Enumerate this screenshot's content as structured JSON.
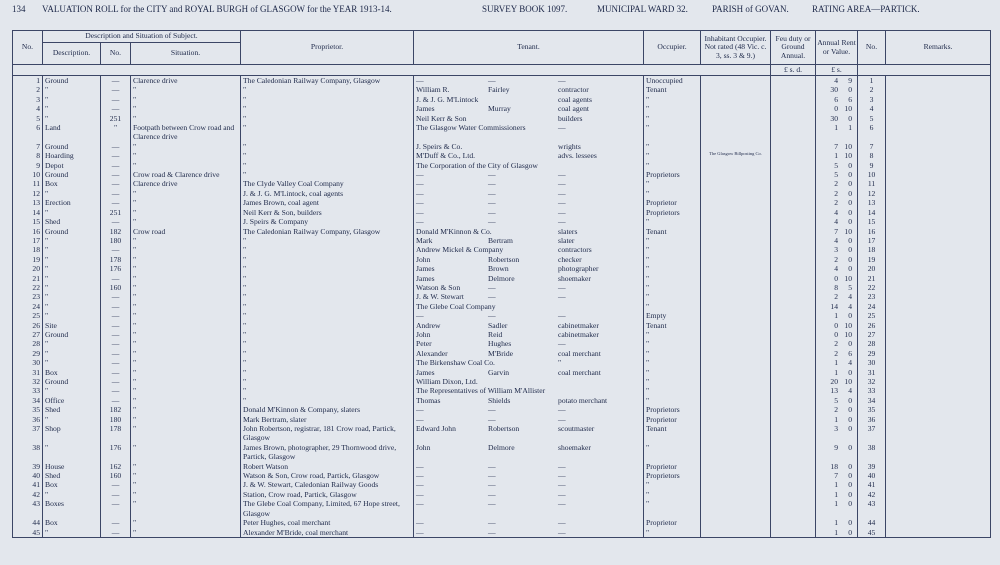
{
  "page_header": {
    "page": "134",
    "title": "VALUATION ROLL for the CITY and ROYAL BURGH of GLASGOW for the YEAR 1913-14.",
    "survey": "SURVEY BOOK 1097.",
    "ward": "MUNICIPAL WARD 32.",
    "parish": "PARISH of GOVAN.",
    "area": "RATING AREA—PARTICK."
  },
  "table": {
    "headers": {
      "no": "No.",
      "subject": "Description and Situation of Subject.",
      "description": "Description.",
      "house_no": "No.",
      "situation": "Situation.",
      "proprietor": "Proprietor.",
      "tenant": "Tenant.",
      "occupier": "Occupier.",
      "inhabitant": "Inhabitant Occupier. Not rated (48 Vic. c. 3, ss. 3 & 9.)",
      "feu": "Feu duty or Ground Annual.",
      "rent": "Annual Rent or Value.",
      "no2": "No.",
      "remarks": "Remarks.",
      "feu_units": "£ s. d.",
      "rent_units": "£ s."
    },
    "rows": [
      {
        "n": 1,
        "desc": "Ground",
        "hno": "—",
        "sit": "Clarence drive",
        "prop": "The Caledonian Railway Company, Glasgow",
        "ten": [
          "—",
          "—",
          "—"
        ],
        "occ": "Unoccupied",
        "r": [
          4,
          9
        ]
      },
      {
        "n": 2,
        "desc": "\"",
        "hno": "—",
        "sit": "\"",
        "prop": "\"",
        "ten": [
          "William R.",
          "Fairley",
          "contractor"
        ],
        "occ": "Tenant",
        "r": [
          30,
          0
        ]
      },
      {
        "n": 3,
        "desc": "\"",
        "hno": "—",
        "sit": "\"",
        "prop": "\"",
        "ten": [
          "J. & J. G. M'Lintock",
          "coal agents"
        ],
        "occ": "\"",
        "r": [
          6,
          6
        ]
      },
      {
        "n": 4,
        "desc": "\"",
        "hno": "—",
        "sit": "\"",
        "prop": "\"",
        "ten": [
          "James",
          "Murray",
          "coal agent"
        ],
        "occ": "\"",
        "r": [
          0,
          10
        ]
      },
      {
        "n": 5,
        "desc": "\"",
        "hno": "251",
        "sit": "\"",
        "prop": "\"",
        "ten": [
          "Neil Kerr & Son",
          "builders"
        ],
        "occ": "\"",
        "r": [
          30,
          0
        ]
      },
      {
        "n": 6,
        "desc": "Land",
        "hno": "\"",
        "sit": "Footpath between Crow road and Clarence drive",
        "prop": "\"",
        "ten": [
          "The Glasgow Water Commissioners",
          "—"
        ],
        "occ": "\"",
        "r": [
          1,
          1
        ]
      },
      {
        "n": 7,
        "desc": "Ground",
        "hno": "—",
        "sit": "\"",
        "prop": "\"",
        "ten": [
          "J. Speirs & Co.",
          "wrights"
        ],
        "occ": "\"",
        "r": [
          7,
          10
        ]
      },
      {
        "n": 8,
        "desc": "Hoarding",
        "hno": "—",
        "sit": "\"",
        "prop": "\"",
        "ten": [
          "M'Duff & Co., Ltd.",
          "advs. lessees"
        ],
        "occ": "\"",
        "inh": "The Glasgow Billposting Co.",
        "r": [
          1,
          10
        ]
      },
      {
        "n": 9,
        "desc": "Depot",
        "hno": "—",
        "sit": "\"",
        "prop": "\"",
        "ten": [
          "The Corporation of the City of Glasgow"
        ],
        "occ": "\"",
        "r": [
          5,
          0
        ]
      },
      {
        "n": 10,
        "desc": "Ground",
        "hno": "—",
        "sit": "Crow road & Clarence drive",
        "prop": "\"",
        "ten": [
          "—",
          "—",
          "—"
        ],
        "occ": "Proprietors",
        "r": [
          5,
          0
        ]
      },
      {
        "n": 11,
        "desc": "Box",
        "hno": "—",
        "sit": "Clarence drive",
        "prop": "The Clyde Valley Coal Company",
        "ten": [
          "—",
          "—",
          "—"
        ],
        "occ": "\"",
        "r": [
          2,
          0
        ]
      },
      {
        "n": 12,
        "desc": "\"",
        "hno": "—",
        "sit": "\"",
        "prop": "J. & J. G. M'Lintock, coal agents",
        "ten": [
          "—",
          "—",
          "—"
        ],
        "occ": "\"",
        "r": [
          2,
          0
        ]
      },
      {
        "n": 13,
        "desc": "Erection",
        "hno": "—",
        "sit": "\"",
        "prop": "James Brown, coal agent",
        "ten": [
          "—",
          "—",
          "—"
        ],
        "occ": "Proprietor",
        "r": [
          2,
          0
        ]
      },
      {
        "n": 14,
        "desc": "\"",
        "hno": "251",
        "sit": "\"",
        "prop": "Neil Kerr & Son, builders",
        "ten": [
          "—",
          "—",
          "—"
        ],
        "occ": "Proprietors",
        "r": [
          4,
          0
        ]
      },
      {
        "n": 15,
        "desc": "Shed",
        "hno": "—",
        "sit": "\"",
        "prop": "J. Speirs & Company",
        "ten": [
          "—",
          "—",
          "—"
        ],
        "occ": "\"",
        "r": [
          4,
          0
        ]
      },
      {
        "n": 16,
        "desc": "Ground",
        "hno": "182",
        "sit": "Crow road",
        "prop": "The Caledonian Railway Company, Glasgow",
        "ten": [
          "Donald M'Kinnon & Co.",
          "slaters"
        ],
        "occ": "Tenant",
        "r": [
          7,
          10
        ]
      },
      {
        "n": 17,
        "desc": "\"",
        "hno": "180",
        "sit": "\"",
        "prop": "\"",
        "ten": [
          "Mark",
          "Bertram",
          "slater"
        ],
        "occ": "\"",
        "r": [
          4,
          0
        ]
      },
      {
        "n": 18,
        "desc": "\"",
        "hno": "—",
        "sit": "\"",
        "prop": "\"",
        "ten": [
          "Andrew Mickel & Company",
          "contractors"
        ],
        "occ": "\"",
        "r": [
          3,
          0
        ]
      },
      {
        "n": 19,
        "desc": "\"",
        "hno": "178",
        "sit": "\"",
        "prop": "\"",
        "ten": [
          "John",
          "Robertson",
          "checker"
        ],
        "occ": "\"",
        "r": [
          2,
          0
        ]
      },
      {
        "n": 20,
        "desc": "\"",
        "hno": "176",
        "sit": "\"",
        "prop": "\"",
        "ten": [
          "James",
          "Brown",
          "photographer"
        ],
        "occ": "\"",
        "r": [
          4,
          0
        ]
      },
      {
        "n": 21,
        "desc": "\"",
        "hno": "—",
        "sit": "\"",
        "prop": "\"",
        "ten": [
          "James",
          "Delmore",
          "shoemaker"
        ],
        "occ": "\"",
        "r": [
          0,
          10
        ]
      },
      {
        "n": 22,
        "desc": "\"",
        "hno": "160",
        "sit": "\"",
        "prop": "\"",
        "ten": [
          "Watson & Son",
          "—",
          "—"
        ],
        "occ": "\"",
        "r": [
          8,
          5
        ]
      },
      {
        "n": 23,
        "desc": "\"",
        "hno": "—",
        "sit": "\"",
        "prop": "\"",
        "ten": [
          "J. & W. Stewart",
          "—",
          "—"
        ],
        "occ": "\"",
        "r": [
          2,
          4
        ]
      },
      {
        "n": 24,
        "desc": "\"",
        "hno": "—",
        "sit": "\"",
        "prop": "\"",
        "ten": [
          "The Glebe Coal Company"
        ],
        "occ": "\"",
        "r": [
          14,
          4
        ]
      },
      {
        "n": 25,
        "desc": "\"",
        "hno": "—",
        "sit": "\"",
        "prop": "\"",
        "ten": [
          "—",
          "—",
          "—"
        ],
        "occ": "Empty",
        "r": [
          1,
          0
        ]
      },
      {
        "n": 26,
        "desc": "Site",
        "hno": "—",
        "sit": "\"",
        "prop": "\"",
        "ten": [
          "Andrew",
          "Sadler",
          "cabinetmaker"
        ],
        "occ": "Tenant",
        "r": [
          0,
          10
        ]
      },
      {
        "n": 27,
        "desc": "Ground",
        "hno": "—",
        "sit": "\"",
        "prop": "\"",
        "ten": [
          "John",
          "Reid",
          "cabinetmaker"
        ],
        "occ": "\"",
        "r": [
          0,
          10
        ]
      },
      {
        "n": 28,
        "desc": "\"",
        "hno": "—",
        "sit": "\"",
        "prop": "\"",
        "ten": [
          "Peter",
          "Hughes",
          "—"
        ],
        "occ": "\"",
        "r": [
          2,
          0
        ]
      },
      {
        "n": 29,
        "desc": "\"",
        "hno": "—",
        "sit": "\"",
        "prop": "\"",
        "ten": [
          "Alexander",
          "M'Bride",
          "coal merchant"
        ],
        "occ": "\"",
        "r": [
          2,
          6
        ]
      },
      {
        "n": 30,
        "desc": "\"",
        "hno": "—",
        "sit": "\"",
        "prop": "\"",
        "ten": [
          "The Birkenshaw Coal Co.",
          "\""
        ],
        "occ": "\"",
        "r": [
          1,
          4
        ]
      },
      {
        "n": 31,
        "desc": "Box",
        "hno": "—",
        "sit": "\"",
        "prop": "\"",
        "ten": [
          "James",
          "Garvin",
          "coal merchant"
        ],
        "occ": "\"",
        "r": [
          1,
          0
        ]
      },
      {
        "n": 32,
        "desc": "Ground",
        "hno": "—",
        "sit": "\"",
        "prop": "\"",
        "ten": [
          "William Dixon, Ltd."
        ],
        "occ": "\"",
        "r": [
          20,
          10
        ]
      },
      {
        "n": 33,
        "desc": "\"",
        "hno": "—",
        "sit": "\"",
        "prop": "\"",
        "ten": [
          "The Representatives of William M'Allister"
        ],
        "occ": "\"",
        "r": [
          13,
          4
        ]
      },
      {
        "n": 34,
        "desc": "Office",
        "hno": "—",
        "sit": "\"",
        "prop": "\"",
        "ten": [
          "Thomas",
          "Shields",
          "potato merchant"
        ],
        "occ": "\"",
        "r": [
          5,
          0
        ]
      },
      {
        "n": 35,
        "desc": "Shed",
        "hno": "182",
        "sit": "\"",
        "prop": "Donald M'Kinnon & Company, slaters",
        "ten": [
          "—",
          "—",
          "—"
        ],
        "occ": "Proprietors",
        "r": [
          2,
          0
        ]
      },
      {
        "n": 36,
        "desc": "\"",
        "hno": "180",
        "sit": "\"",
        "prop": "Mark Bertram, slater",
        "ten": [
          "—",
          "—",
          "—"
        ],
        "occ": "Proprietor",
        "r": [
          1,
          0
        ]
      },
      {
        "n": 37,
        "desc": "Shop",
        "hno": "178",
        "sit": "\"",
        "prop": "John Robertson, registrar, 181 Crow road, Partick, Glasgow",
        "ten": [
          "Edward John",
          "Robertson",
          "scoutmaster"
        ],
        "occ": "Tenant",
        "r": [
          3,
          0
        ]
      },
      {
        "n": 38,
        "desc": "\"",
        "hno": "176",
        "sit": "\"",
        "prop": "James Brown, photographer, 29 Thornwood drive, Partick, Glasgow",
        "ten": [
          "John",
          "Delmore",
          "shoemaker"
        ],
        "occ": "\"",
        "r": [
          9,
          0
        ]
      },
      {
        "n": 39,
        "desc": "House",
        "hno": "162",
        "sit": "\"",
        "prop": "Robert Watson",
        "ten": [
          "—",
          "—",
          "—"
        ],
        "occ": "Proprietor",
        "r": [
          18,
          0
        ]
      },
      {
        "n": 40,
        "desc": "Shed",
        "hno": "160",
        "sit": "\"",
        "prop": "Watson & Son, Crow road, Partick, Glasgow",
        "ten": [
          "—",
          "—",
          "—"
        ],
        "occ": "Proprietors",
        "r": [
          7,
          0
        ]
      },
      {
        "n": 41,
        "desc": "Box",
        "hno": "—",
        "sit": "\"",
        "prop": "J. & W. Stewart, Caledonian Railway Goods",
        "ten": [
          "—",
          "—",
          "—"
        ],
        "occ": "\"",
        "r": [
          1,
          0
        ]
      },
      {
        "n": 42,
        "desc": "\"",
        "hno": "—",
        "sit": "\"",
        "prop": "Station, Crow road, Partick, Glasgow",
        "ten": [
          "—",
          "—",
          "—"
        ],
        "occ": "\"",
        "r": [
          1,
          0
        ]
      },
      {
        "n": 43,
        "desc": "Boxes",
        "hno": "—",
        "sit": "\"",
        "prop": "The Glebe Coal Company, Limited, 67 Hope street, Glasgow",
        "ten": [
          "—",
          "—",
          "—"
        ],
        "occ": "\"",
        "r": [
          1,
          0
        ]
      },
      {
        "n": 44,
        "desc": "Box",
        "hno": "—",
        "sit": "\"",
        "prop": "Peter Hughes, coal merchant",
        "ten": [
          "—",
          "—",
          "—"
        ],
        "occ": "Proprietor",
        "r": [
          1,
          0
        ]
      },
      {
        "n": 45,
        "desc": "\"",
        "hno": "—",
        "sit": "\"",
        "prop": "Alexander M'Bride, coal merchant",
        "ten": [
          "—",
          "—",
          "—"
        ],
        "occ": "\"",
        "r": [
          1,
          0
        ]
      }
    ]
  }
}
